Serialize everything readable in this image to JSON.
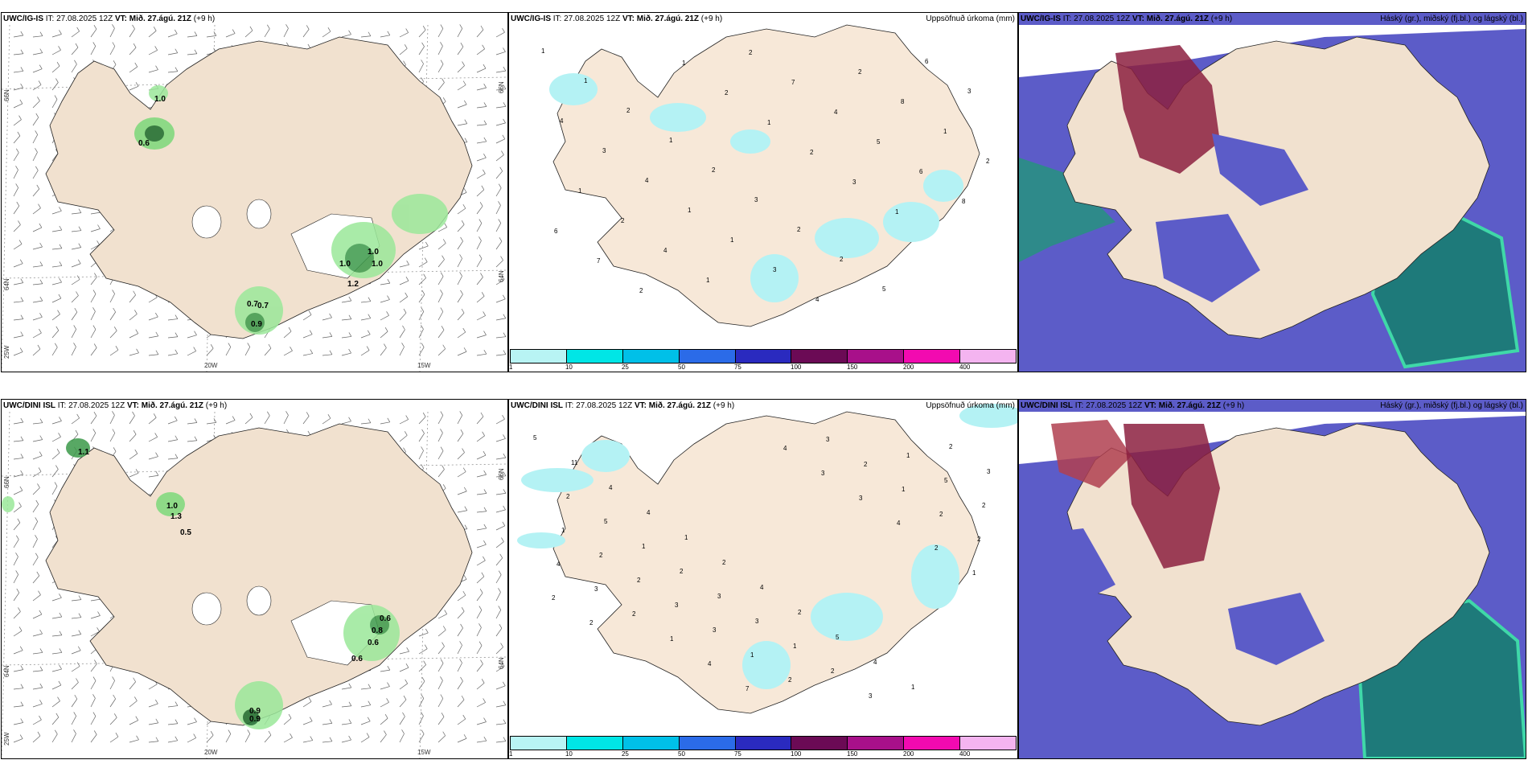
{
  "row_top": {
    "model": "UWC/IG-IS",
    "issue_time": "IT: 27.08.2025 12Z",
    "valid_time": "VT: Mið. 27.ágú. 21Z",
    "lead": "(+9 h)",
    "left_labels": {
      "lat1": "66N",
      "lat2": "64N",
      "lat3": "25W",
      "lon1": "20W",
      "lon2": "15W",
      "r1": "66N",
      "r2": "64N"
    },
    "wind_values": [
      "1.0",
      "0.6",
      "1.0",
      "1.0",
      "1.0",
      "1.2",
      "0.7",
      "0.7",
      "0.9"
    ],
    "precip_title": "Uppsöfnuð úrkoma (mm)",
    "precip_values": [
      "1",
      "1",
      "2",
      "1",
      "2",
      "3",
      "2",
      "2",
      "5",
      "6",
      "3",
      "4",
      "3",
      "4",
      "1",
      "1",
      "3",
      "4",
      "2",
      "8",
      "1",
      "2",
      "1",
      "2",
      "4",
      "1",
      "2",
      "7",
      "4",
      "5",
      "6",
      "8",
      "6",
      "7",
      "2",
      "1",
      "2",
      "1",
      "2",
      "3",
      "1"
    ],
    "cloud_title": "Háský (gr.), miðský (fj.bl.) og lágský (bl.)"
  },
  "row_bottom": {
    "model": "UWC/DINI ISL",
    "issue_time": "IT: 27.08.2025 12Z",
    "valid_time": "VT: Mið. 27.ágú. 21Z",
    "lead": "(+9 h)",
    "left_labels": {
      "lat1": "66N",
      "lat2": "64N",
      "lat3": "25W",
      "lon1": "20W",
      "lon2": "15W",
      "r1": "66N",
      "r2": "64N"
    },
    "wind_values": [
      "1.1",
      "1.0",
      "1.3",
      "0.5",
      "0.6",
      "0.8",
      "0.6",
      "0.6",
      "0.9",
      "0.9"
    ],
    "precip_title": "Uppsöfnuð úrkoma (mm)",
    "precip_values": [
      "5",
      "11",
      "4",
      "4",
      "1",
      "2",
      "4",
      "2",
      "5",
      "4",
      "1",
      "2",
      "3",
      "2",
      "5",
      "1",
      "2",
      "3",
      "3",
      "1",
      "2",
      "3",
      "1",
      "5",
      "2",
      "1",
      "2",
      "2",
      "3",
      "3",
      "1",
      "2",
      "3",
      "2",
      "1",
      "2",
      "2",
      "4",
      "3",
      "2",
      "1",
      "4",
      "7",
      "4",
      "3",
      "3",
      "4",
      "2",
      "1",
      "2",
      "2"
    ],
    "cloud_title": "Háský (gr.), miðský (fj.bl.) og lágský (bl.)"
  },
  "colorbar": {
    "colors": [
      "#b8f4f4",
      "#00e6e6",
      "#00c0e8",
      "#2b6be8",
      "#2a2abf",
      "#6b0a55",
      "#a8108a",
      "#f20ab0",
      "#f4b4f0"
    ],
    "ticks": [
      "1",
      "10",
      "25",
      "50",
      "75",
      "100",
      "150",
      "200",
      "400"
    ]
  },
  "colors": {
    "land": "#f1e1cf",
    "precip_light": "#b4f2f4",
    "wind_green": "#9be89a",
    "wind_dark": "#1a6b2a",
    "low_cloud": "#5c5cc8",
    "mid_cloud": "#2e8a8a",
    "high_cloud": "#8c2040"
  }
}
